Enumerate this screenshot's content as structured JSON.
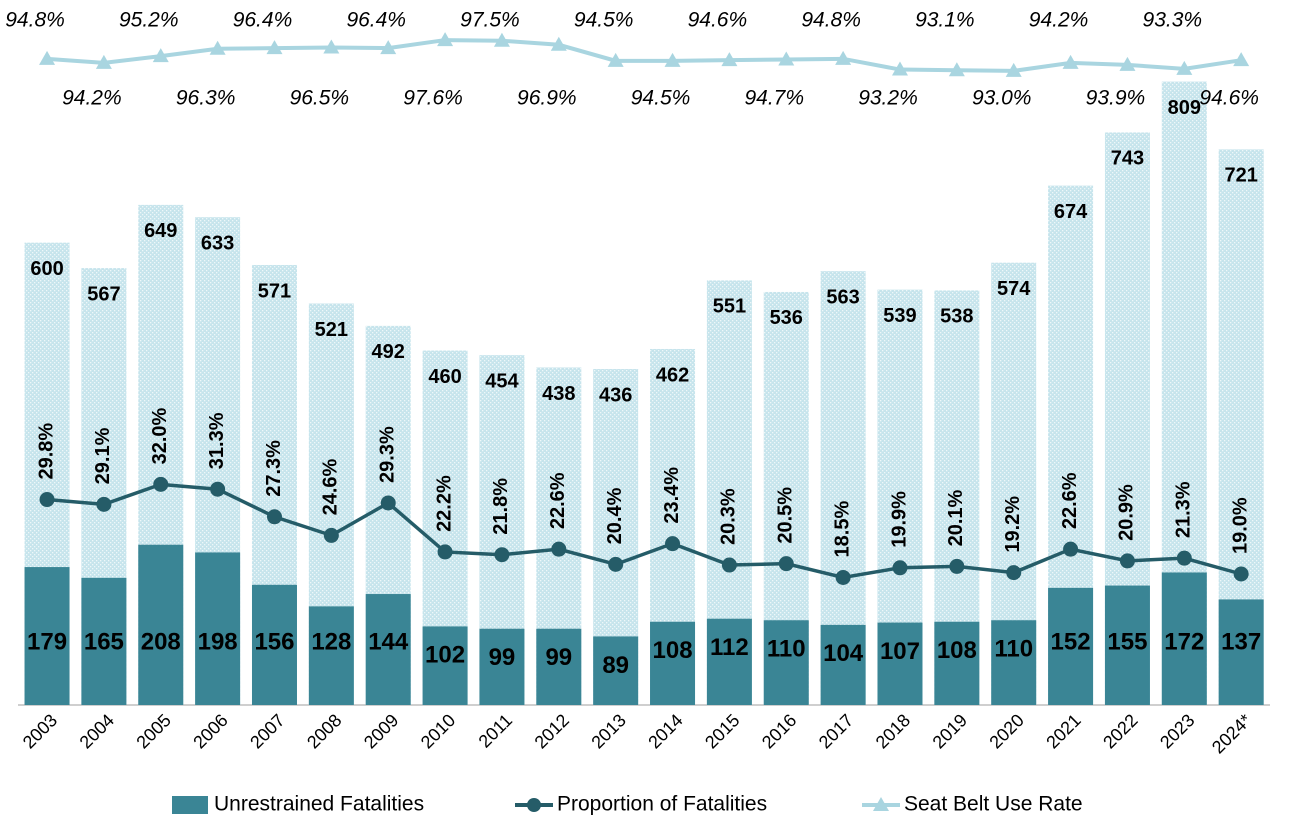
{
  "chart_data": {
    "type": "bar",
    "categories": [
      "2003",
      "2004",
      "2005",
      "2006",
      "2007",
      "2008",
      "2009",
      "2010",
      "2011",
      "2012",
      "2013",
      "2014",
      "2015",
      "2016",
      "2017",
      "2018",
      "2019",
      "2020",
      "2021",
      "2022",
      "2023",
      "2024*"
    ],
    "ylim": [
      0,
      850
    ],
    "y2lim": [
      0,
      95
    ],
    "y3lim": [
      90,
      100
    ],
    "series": [
      {
        "type": "bar",
        "color": "#c6e4ec",
        "values": [
          600,
          567,
          649,
          633,
          571,
          521,
          492,
          460,
          454,
          438,
          436,
          462,
          551,
          536,
          563,
          539,
          538,
          574,
          674,
          743,
          809,
          721
        ]
      },
      {
        "name": "Unrestrained Fatalities",
        "type": "bar",
        "color": "#3a8595",
        "values": [
          179,
          165,
          208,
          198,
          156,
          128,
          144,
          102,
          99,
          99,
          89,
          108,
          112,
          110,
          104,
          107,
          108,
          110,
          152,
          155,
          172,
          137
        ]
      },
      {
        "name": "Proportion of Fatalities",
        "type": "line",
        "axis": "y2",
        "color": "#255c68",
        "marker": "circle",
        "values": [
          29.8,
          29.1,
          32.0,
          31.3,
          27.3,
          24.6,
          29.3,
          22.2,
          21.8,
          22.6,
          20.4,
          23.4,
          20.3,
          20.5,
          18.5,
          19.9,
          20.1,
          19.2,
          22.6,
          20.9,
          21.3,
          19.0
        ],
        "value_labels": [
          "29.8%",
          "29.1%",
          "32.0%",
          "31.3%",
          "27.3%",
          "24.6%",
          "29.3%",
          "22.2%",
          "21.8%",
          "22.6%",
          "20.4%",
          "23.4%",
          "20.3%",
          "20.5%",
          "18.5%",
          "19.9%",
          "20.1%",
          "19.2%",
          "22.6%",
          "20.9%",
          "21.3%",
          "19.0%"
        ]
      },
      {
        "name": "Seat Belt Use Rate",
        "type": "line",
        "axis": "y3",
        "color": "#a9d5e0",
        "marker": "triangle",
        "values": [
          94.8,
          94.2,
          95.2,
          96.3,
          96.4,
          96.5,
          96.4,
          97.6,
          97.5,
          96.9,
          94.5,
          94.5,
          94.6,
          94.7,
          94.8,
          93.2,
          93.1,
          93.0,
          94.2,
          93.9,
          93.3,
          94.6
        ],
        "value_labels": [
          "94.8%",
          "94.2%",
          "95.2%",
          "96.3%",
          "96.4%",
          "96.5%",
          "96.4%",
          "97.6%",
          "97.5%",
          "96.9%",
          "94.5%",
          "94.5%",
          "94.6%",
          "94.7%",
          "94.8%",
          "93.2%",
          "93.1%",
          "93.0%",
          "94.2%",
          "93.9%",
          "93.3%",
          "94.6%"
        ]
      }
    ]
  }
}
